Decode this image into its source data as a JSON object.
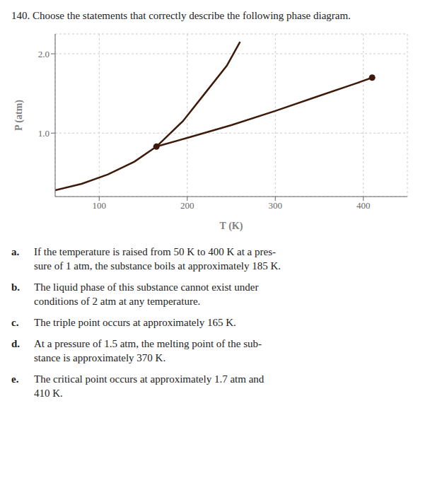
{
  "chart_data": {
    "type": "line",
    "title": "140. Choose the statements that correctly describe the following phase diagram.",
    "xlabel": "T (K)",
    "ylabel": "P (atm)",
    "xlim": [
      50,
      450
    ],
    "ylim": [
      0.2,
      2.25
    ],
    "xticks": [
      100,
      200,
      300,
      400
    ],
    "yticks": [
      {
        "value": 1.0,
        "label": "1.0"
      },
      {
        "value": 2.0,
        "label": "2.0"
      }
    ],
    "grid": true,
    "series": [
      {
        "type": "line",
        "color": "#3d1a0a",
        "x": [
          50,
          80,
          110,
          140,
          165
        ],
        "values": [
          0.28,
          0.36,
          0.48,
          0.64,
          0.83
        ]
      },
      {
        "type": "line",
        "color": "#3d1a0a",
        "x": [
          165,
          195,
          220,
          245,
          260
        ],
        "values": [
          0.83,
          1.15,
          1.5,
          1.85,
          2.15
        ]
      },
      {
        "type": "line",
        "color": "#3d1a0a",
        "x": [
          165,
          200,
          250,
          300,
          350,
          390,
          410
        ],
        "values": [
          0.83,
          0.94,
          1.1,
          1.28,
          1.47,
          1.62,
          1.7
        ]
      },
      {
        "type": "scatter",
        "marker": "circle",
        "color": "#3d1a0a",
        "x": [
          165,
          410
        ],
        "values": [
          0.83,
          1.7
        ]
      }
    ],
    "annotations": [
      {
        "label": "a.",
        "lines": [
          "If the temperature is raised from 50 K to 400 K at a pres-",
          "sure of 1 atm, the substance boils at approximately 185 K."
        ]
      },
      {
        "label": "b.",
        "lines": [
          "The liquid phase of this substance cannot exist under",
          "conditions of 2 atm at any temperature."
        ]
      },
      {
        "label": "c.",
        "lines": [
          "The triple point occurs at approximately 165 K."
        ]
      },
      {
        "label": "d.",
        "lines": [
          "At a pressure of 1.5 atm, the melting point of the sub-",
          "stance is approximately 370 K."
        ]
      },
      {
        "label": "e.",
        "lines": [
          "The critical point occurs at approximately 1.7 atm and",
          "410 K."
        ]
      }
    ]
  }
}
